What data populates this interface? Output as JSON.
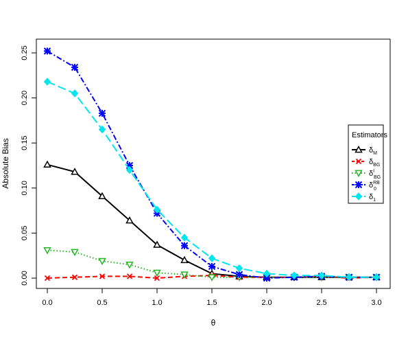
{
  "chart_data": {
    "type": "line",
    "title": "",
    "xlabel": "θ",
    "ylabel": "Absolute Bias",
    "xlim": [
      0,
      3
    ],
    "ylim": [
      0,
      0.25
    ],
    "xticks": [
      "0.0",
      "0.5",
      "1.0",
      "1.5",
      "2.0",
      "2.5",
      "3.0"
    ],
    "yticks": [
      "0.00",
      "0.05",
      "0.10",
      "0.15",
      "0.20",
      "0.25"
    ],
    "grid": false,
    "legend_position": "right",
    "legend_title": "Estimators",
    "x": [
      0,
      0.25,
      0.5,
      0.75,
      1.0,
      1.25,
      1.5,
      1.75,
      2.0,
      2.25,
      2.5,
      2.75,
      3.0
    ],
    "series": [
      {
        "key": "dM",
        "name": "δ",
        "sub": "M",
        "sup": "",
        "color": "#000000",
        "marker": "triangle-open",
        "dash": "",
        "values": [
          0.126,
          0.118,
          0.091,
          0.064,
          0.037,
          0.02,
          0.005,
          0.002,
          0.001,
          0.001,
          0.001,
          0.001,
          0.001
        ]
      },
      {
        "key": "dBG",
        "name": "δ",
        "sub": "BG",
        "sup": "",
        "color": "#ff0000",
        "marker": "x",
        "dash": "7,4",
        "values": [
          0.0,
          0.001,
          0.002,
          0.002,
          0.0,
          0.002,
          0.003,
          0.001,
          0.001,
          0.001,
          0.002,
          0.0,
          0.001
        ]
      },
      {
        "key": "dBGI",
        "name": "δ",
        "sub": "BG",
        "sup": "I",
        "color": "#22b522",
        "marker": "triangle-down-open",
        "dash": "1.5,3",
        "values": [
          0.031,
          0.029,
          0.019,
          0.015,
          0.006,
          0.004,
          0.001,
          0.001,
          0.001,
          0.001,
          0.001,
          0.001,
          0.001
        ]
      },
      {
        "key": "d0RB",
        "name": "δ",
        "sub": "0",
        "sup": "RB",
        "color": "#0000ff",
        "marker": "asterisk",
        "dash": "8,3,2,3",
        "values": [
          0.252,
          0.234,
          0.183,
          0.125,
          0.072,
          0.036,
          0.013,
          0.004,
          0.0,
          0.001,
          0.002,
          0.001,
          0.001
        ]
      },
      {
        "key": "d1",
        "name": "δ",
        "sub": "1",
        "sup": "",
        "color": "#00e5ee",
        "marker": "diamond",
        "dash": "12,5",
        "values": [
          0.218,
          0.205,
          0.165,
          0.12,
          0.076,
          0.045,
          0.022,
          0.011,
          0.005,
          0.003,
          0.003,
          0.001,
          0.001
        ]
      }
    ]
  }
}
